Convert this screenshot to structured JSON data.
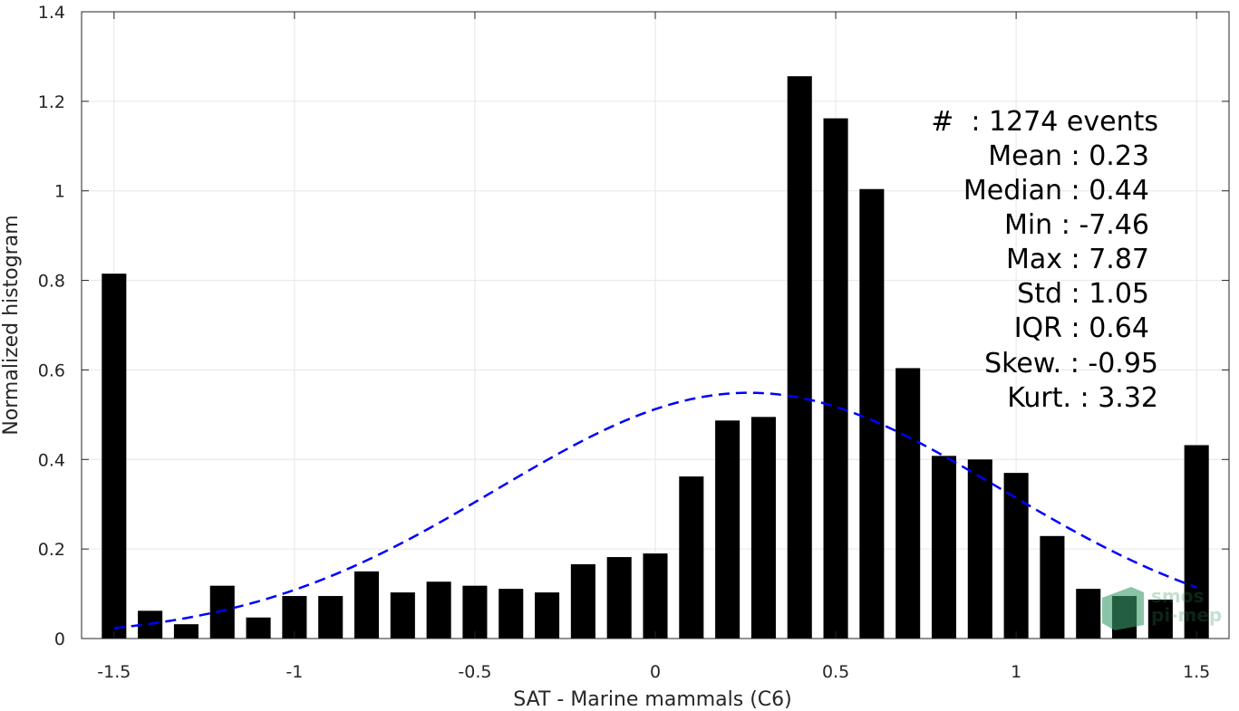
{
  "chart_data": {
    "type": "bar",
    "xlabel": "SAT - Marine mammals (C6)",
    "ylabel": "Normalized histogram",
    "xlim": [
      -1.59,
      1.59
    ],
    "ylim": [
      0,
      1.4
    ],
    "xticks": [
      -1.5,
      -1,
      -0.5,
      0,
      0.5,
      1,
      1.5
    ],
    "xtick_labels": [
      "-1.5",
      "-1",
      "-0.5",
      "0",
      "0.5",
      "1",
      "1.5"
    ],
    "yticks": [
      0,
      0.2,
      0.4,
      0.6,
      0.8,
      1,
      1.2,
      1.4
    ],
    "ytick_labels": [
      "0",
      "0.2",
      "0.4",
      "0.6",
      "0.8",
      "1",
      "1.2",
      "1.4"
    ],
    "grid": true,
    "bin_width": 0.1,
    "bar_color": "#000000",
    "x": [
      -1.5,
      -1.4,
      -1.3,
      -1.2,
      -1.1,
      -1.0,
      -0.9,
      -0.8,
      -0.7,
      -0.6,
      -0.5,
      -0.4,
      -0.3,
      -0.2,
      -0.1,
      0.0,
      0.1,
      0.2,
      0.3,
      0.4,
      0.5,
      0.6,
      0.7,
      0.8,
      0.9,
      1.0,
      1.1,
      1.2,
      1.3,
      1.4,
      1.5
    ],
    "values": [
      0.815,
      0.062,
      0.032,
      0.118,
      0.047,
      0.095,
      0.095,
      0.15,
      0.103,
      0.127,
      0.118,
      0.111,
      0.103,
      0.166,
      0.182,
      0.19,
      0.362,
      0.487,
      0.495,
      1.256,
      1.162,
      1.004,
      0.604,
      0.408,
      0.4,
      0.37,
      0.229,
      0.111,
      0.095,
      0.087,
      0.432
    ],
    "fit_curve": {
      "name": "Gaussian fit",
      "color": "#0000ff",
      "style": "dashed",
      "mean": 0.26,
      "std": 0.7,
      "peak": 0.549,
      "x_range": [
        -1.5,
        1.5
      ]
    },
    "annotations": [
      "#  : 1274 events",
      "Mean : 0.23",
      "Median : 0.44",
      "Min : -7.46",
      "Max : 7.87",
      "Std : 1.05",
      "IQR : 0.64",
      "Skew. : -0.95",
      "Kurt. : 3.32"
    ],
    "watermark": [
      "smos",
      "pi-mep"
    ]
  }
}
